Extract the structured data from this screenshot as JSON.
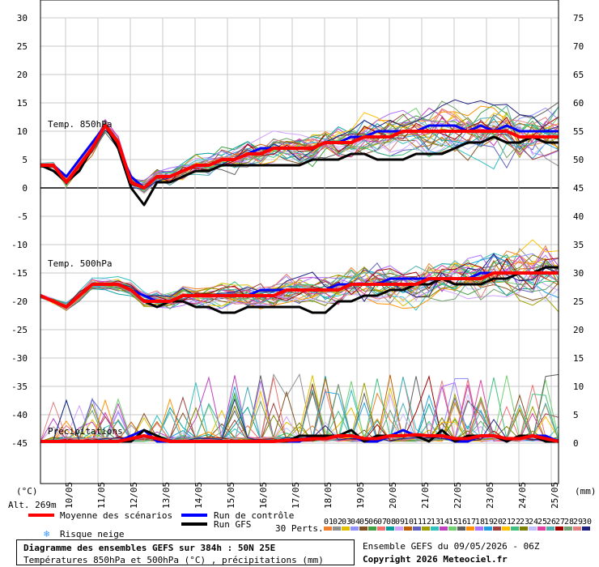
{
  "footer": {
    "title": "Diagramme des ensembles GEFS sur 384h : 50N 25E",
    "subtitle": "Températures 850hPa et 500hPa (°C) , précipitations (mm)",
    "run_info": "Ensemble GEFS du 09/05/2026 - 06Z",
    "copyright": "Copyright 2026 Meteociel.fr"
  },
  "legend": {
    "mean": "Moyenne des scénarios",
    "control": "Run de contrôle",
    "gfs": "Run GFS",
    "snow": "Risque neige",
    "perts_label": "30 Perts.",
    "perts": [
      "01",
      "02",
      "03",
      "04",
      "05",
      "06",
      "07",
      "08",
      "09",
      "10",
      "11",
      "12",
      "13",
      "14",
      "15",
      "16",
      "17",
      "18",
      "19",
      "20",
      "21",
      "22",
      "23",
      "24",
      "25",
      "26",
      "27",
      "28",
      "29",
      "30"
    ]
  },
  "labels": {
    "alt": "Alt. 269m",
    "unit_left": "(°C)",
    "unit_right": "(mm)"
  },
  "colors": {
    "mean": "#ff0000",
    "control": "#0000ff",
    "gfs": "#000000",
    "perts": [
      "#f08030",
      "#909090",
      "#e0c000",
      "#9090ff",
      "#805020",
      "#40a040",
      "#f07070",
      "#00a0a0",
      "#d0a0ff",
      "#c06000",
      "#6060c0",
      "#a0a000",
      "#30c0c0",
      "#c040c0",
      "#70d070",
      "#606060",
      "#ff9000",
      "#b070ff",
      "#20a0e0",
      "#a04040",
      "#ffc000",
      "#40c080",
      "#808000",
      "#c0c0ff",
      "#e040a0",
      "#50b0b0",
      "#a00000",
      "#70a070",
      "#e08080",
      "#202080"
    ]
  },
  "chart_data": {
    "type": "line",
    "x_ticks": [
      "10/05",
      "11/05",
      "12/05",
      "13/05",
      "14/05",
      "15/05",
      "16/05",
      "17/05",
      "18/05",
      "19/05",
      "20/05",
      "21/05",
      "22/05",
      "23/05",
      "24/05",
      "25/05"
    ],
    "y_left_ticks": [
      30,
      25,
      20,
      15,
      10,
      5,
      0,
      -5,
      -10,
      -15,
      -20,
      -25,
      -30,
      -35,
      -40,
      -45
    ],
    "y_right_ticks": [
      75,
      70,
      65,
      60,
      55,
      50,
      45,
      40,
      35,
      30,
      25,
      20,
      15,
      10,
      5,
      0
    ],
    "ylim_left": [
      -45,
      30
    ],
    "panels": [
      {
        "label": "Temp. 850hPa",
        "unit": "°C",
        "series": [
          {
            "name": "Moyenne des scénarios",
            "values": [
              4,
              4,
              1,
              4,
              7,
              11,
              8,
              1,
              0,
              2,
              2,
              3,
              4,
              4,
              5,
              5,
              6,
              6,
              7,
              7,
              7,
              7,
              8,
              8,
              8,
              9,
              9,
              9,
              10,
              10,
              10,
              10,
              10,
              10,
              10,
              10,
              10,
              9,
              9,
              9,
              9
            ]
          },
          {
            "name": "Run de contrôle",
            "values": [
              4,
              4,
              2,
              5,
              8,
              11,
              7,
              2,
              0,
              2,
              2,
              3,
              4,
              4,
              5,
              5,
              6,
              7,
              7,
              7,
              7,
              7,
              8,
              8,
              9,
              9,
              10,
              10,
              10,
              10,
              11,
              11,
              11,
              10,
              11,
              10,
              11,
              10,
              10,
              10,
              10
            ]
          },
          {
            "name": "Run GFS",
            "values": [
              4,
              3,
              1,
              3,
              7,
              11,
              7,
              0,
              -3,
              1,
              1,
              2,
              3,
              3,
              4,
              4,
              4,
              4,
              4,
              4,
              4,
              5,
              5,
              5,
              6,
              6,
              5,
              5,
              5,
              6,
              6,
              6,
              7,
              8,
              8,
              9,
              8,
              8,
              9,
              8,
              8
            ]
          }
        ]
      },
      {
        "label": "Temp. 500hPa",
        "unit": "°C",
        "series": [
          {
            "name": "Moyenne des scénarios",
            "values": [
              -19,
              -20,
              -21,
              -19,
              -17,
              -17,
              -17,
              -18,
              -20,
              -20,
              -20,
              -19,
              -19,
              -19,
              -19,
              -19,
              -19,
              -19,
              -19,
              -18,
              -18,
              -18,
              -18,
              -18,
              -17,
              -17,
              -17,
              -17,
              -17,
              -17,
              -16,
              -16,
              -16,
              -16,
              -16,
              -15,
              -15,
              -15,
              -15,
              -15,
              -15
            ]
          },
          {
            "name": "Run de contrôle",
            "values": [
              -19,
              -20,
              -21,
              -19,
              -17,
              -17,
              -17,
              -18,
              -19,
              -20,
              -20,
              -19,
              -19,
              -19,
              -19,
              -19,
              -19,
              -18,
              -18,
              -18,
              -18,
              -18,
              -18,
              -17,
              -17,
              -17,
              -17,
              -16,
              -16,
              -16,
              -16,
              -16,
              -16,
              -16,
              -15,
              -15,
              -15,
              -15,
              -15,
              -15,
              -15
            ]
          },
          {
            "name": "Run GFS",
            "values": [
              -19,
              -20,
              -21,
              -19,
              -17,
              -17,
              -17,
              -18,
              -20,
              -21,
              -20,
              -20,
              -21,
              -21,
              -22,
              -22,
              -21,
              -21,
              -21,
              -21,
              -21,
              -22,
              -22,
              -20,
              -20,
              -19,
              -19,
              -18,
              -18,
              -17,
              -17,
              -16,
              -17,
              -17,
              -17,
              -16,
              -16,
              -15,
              -15,
              -14,
              -14
            ]
          }
        ]
      },
      {
        "label": "Précipitations",
        "unit": "mm",
        "series": [
          {
            "name": "Moyenne des scénarios",
            "values": [
              0,
              0,
              0,
              0,
              0,
              0,
              0,
              0.5,
              1,
              0.5,
              0,
              0,
              0,
              0,
              0,
              0,
              0,
              0,
              0,
              0.2,
              0.3,
              0.5,
              0.5,
              1,
              1,
              0.5,
              0.5,
              1,
              1,
              1.2,
              1,
              1,
              0.5,
              0.5,
              1,
              1,
              0.5,
              0.5,
              1,
              0.5,
              0
            ]
          },
          {
            "name": "Run de contrôle",
            "values": [
              0,
              0,
              0,
              0,
              0,
              0,
              0,
              1,
              2,
              0,
              0,
              0,
              0,
              0,
              0,
              0,
              0,
              0,
              0,
              0,
              0,
              1,
              1,
              1,
              1,
              0,
              0,
              1,
              2,
              1,
              1,
              1,
              0,
              0,
              1,
              1,
              0,
              1,
              1,
              1,
              0
            ]
          },
          {
            "name": "Run GFS",
            "values": [
              0,
              0,
              0,
              0,
              0,
              0,
              0,
              0,
              2,
              1,
              0,
              0,
              0,
              0,
              0,
              0,
              0,
              0,
              0,
              0,
              1,
              1,
              1,
              1,
              2,
              0,
              1,
              1,
              1,
              1,
              0,
              2,
              0,
              1,
              1,
              1,
              0,
              1,
              1,
              0,
              0
            ]
          }
        ]
      }
    ],
    "grid": true,
    "legend_position": "bottom"
  }
}
